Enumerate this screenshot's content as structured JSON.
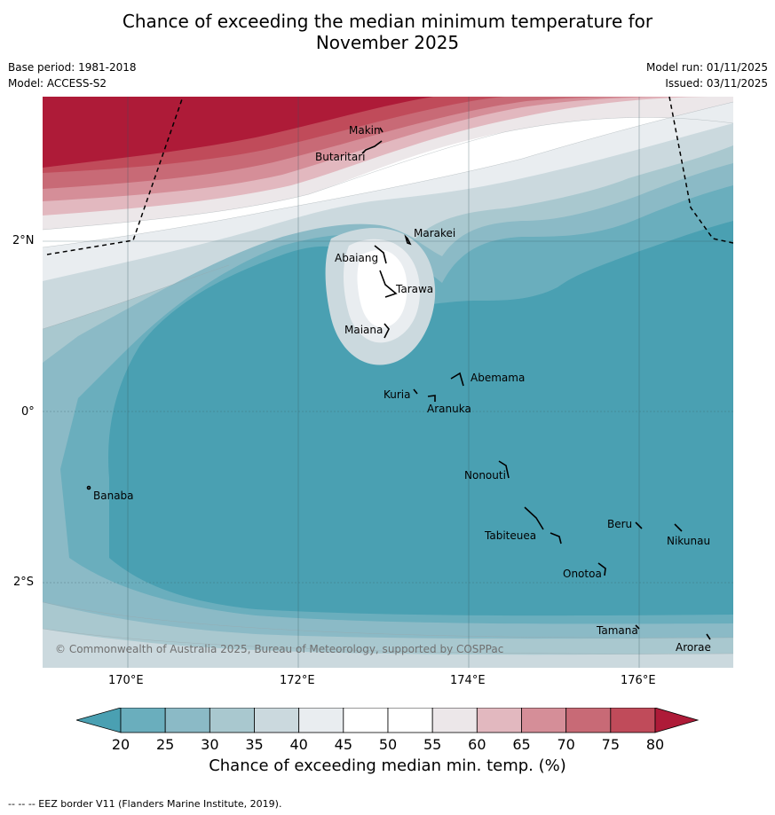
{
  "title_line1": "Chance of exceeding the median minimum temperature for",
  "title_line2": "November 2025",
  "base_period": "Base period: 1981-2018",
  "model": "Model: ACCESS-S2",
  "model_run": "Model run: 01/11/2025",
  "issued": "Issued: 03/11/2025",
  "lat_labels": [
    "2°N",
    "0°",
    "2°S"
  ],
  "lon_labels": [
    "170°E",
    "172°E",
    "174°E",
    "176°E"
  ],
  "places": {
    "makin": "Makin",
    "butaritari": "Butaritari",
    "marakei": "Marakei",
    "abaiang": "Abaiang",
    "tarawa": "Tarawa",
    "maiana": "Maiana",
    "abemama": "Abemama",
    "kuria": "Kuria",
    "aranuka": "Aranuka",
    "nonouti": "Nonouti",
    "banaba": "Banaba",
    "beru": "Beru",
    "nikunau": "Nikunau",
    "tabiteuea": "Tabiteuea",
    "onotoa": "Onotoa",
    "tamana": "Tamana",
    "arorae": "Arorae"
  },
  "copyright": "© Commonwealth of Australia 2025, Bureau of Meteorology, supported by COSPPac",
  "colorbar": {
    "ticks": [
      "20",
      "25",
      "30",
      "35",
      "40",
      "45",
      "50",
      "55",
      "60",
      "65",
      "70",
      "75",
      "80"
    ],
    "colors": [
      "#6aaebd",
      "#8bbac6",
      "#a9c8cf",
      "#cbd9de",
      "#e9edf0",
      "#ffffff",
      "#ffffff",
      "#ece7e9",
      "#e2b8bf",
      "#d58e98",
      "#c86a76",
      "#c04b5a"
    ],
    "low_color": "#4aa0b2",
    "high_color": "#ae1b38",
    "title": "Chance of exceeding median min. temp. (%)"
  },
  "footer": "--  --  -- EEZ border V11 (Flanders Marine Institute, 2019)."
}
